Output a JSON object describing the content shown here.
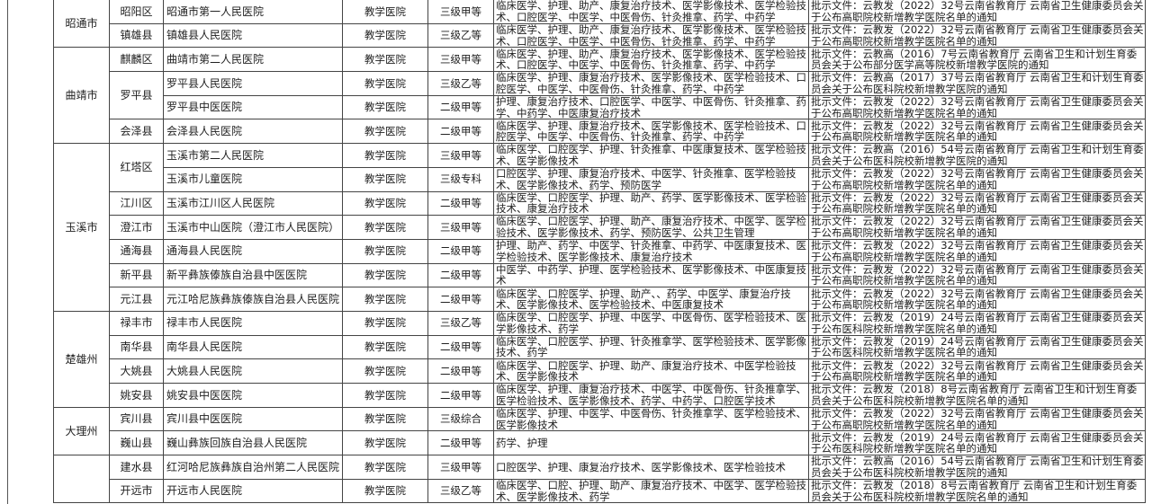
{
  "cities": [
    {
      "name": "昭通市",
      "counties": [
        {
          "name": "昭阳区",
          "hospitals": [
            {
              "name": "昭通市第一人民医院",
              "type": "教学医院",
              "level": "三级甲等",
              "majors": "临床医学、护理、助产、康复治疗技术、医学影像技术、医学检验技术、口腔医学、中医学、中医骨伤、针灸推拿、药学、中药学",
              "document": "批示文件：云教发（2022）32号云南省教育厅 云南省卫生健康委员会关于公布高职院校新增教学医院名单的通知"
            }
          ]
        },
        {
          "name": "镇雄县",
          "hospitals": [
            {
              "name": "镇雄县人民医院",
              "type": "教学医院",
              "level": "三级乙等",
              "majors": "临床医学、护理、助产、康复治疗技术、医学影像技术、医学检验技术、口腔医学、中医学、中医骨伤、针灸推拿、药学、中药学",
              "document": "批示文件：云教发（2022）32号云南省教育厅 云南省卫生健康委员会关于公布高职院校新增教学医院名单的通知"
            }
          ]
        }
      ]
    },
    {
      "name": "曲靖市",
      "counties": [
        {
          "name": "麒麟区",
          "hospitals": [
            {
              "name": "曲靖市第二人民医院",
              "type": "教学医院",
              "level": "三级甲等",
              "majors": "临床医学、护理、助产、康复治疗技术、医学影像技术、医学检验技术、口腔医学、中医学、中医骨伤、针灸推拿、药学、中药学",
              "document": "批示文件：云教高（2016）7号云南省教育厅 云南省卫生和计划生育委员会关于公布部分医学高等院校新增教学医院的通知"
            }
          ]
        },
        {
          "name": "罗平县",
          "hospitals": [
            {
              "name": "罗平县人民医院",
              "type": "教学医院",
              "level": "三级乙等",
              "majors": "临床医学、护理、康复治疗技术、医学影像技术、医学检验技术、口腔医学、中医学、中医骨伤、针灸推拿、药学、中药学",
              "document": "批示文件：云教高（2017）37号云南省教育厅 云南省卫生和计划生育委员会关于公布医科院校新增教学医院的通知"
            },
            {
              "name": "罗平县中医医院",
              "type": "教学医院",
              "level": "二级甲等",
              "majors": "护理、康复治疗技术、口腔医学、中医学、中医骨伤、针灸推拿、药学、中药学、中医康复治疗技术",
              "document": "批示文件：云教发（2022）32号云南省教育厅 云南省卫生健康委员会关于公布高职院校新增教学医院名单的通知"
            }
          ]
        },
        {
          "name": "会泽县",
          "hospitals": [
            {
              "name": "会泽县人民医院",
              "type": "教学医院",
              "level": "二级甲等",
              "majors": "临床医学、护理、康复治疗技术、医学影像技术、医学检验技术、口腔医学、中医学、中医骨伤、针灸推拿、药学、中药学",
              "document": "批示文件：云教发（2022）32号云南省教育厅 云南省卫生健康委员会关于公布高职院校新增教学医院名单的通知"
            }
          ]
        }
      ]
    },
    {
      "name": "玉溪市",
      "counties": [
        {
          "name": "红塔区",
          "hospitals": [
            {
              "name": "玉溪市第二人民医院",
              "type": "教学医院",
              "level": "三级甲等",
              "majors": "临床医学、口腔医学、护理、针灸推拿、中医康复技术、医学检验技术、医学影像技术",
              "document": "批示文件：云教高（2016）54号云南省教育厅 云南省卫生和计划生育委员会关于公布医科院校新增教学医院的通知"
            },
            {
              "name": "玉溪市儿童医院",
              "type": "教学医院",
              "level": "三级专科",
              "majors": "口腔医学、护理、康复治疗技术、中医学、针灸推拿、医学检验技术、医学影像技术、药学、预防医学",
              "document": "批示文件：云教发（2022）32号云南省教育厅 云南省卫生健康委员会关于公布高职院校新增教学医院名单的通知"
            }
          ]
        },
        {
          "name": "江川区",
          "hospitals": [
            {
              "name": "玉溪市江川区人民医院",
              "type": "教学医院",
              "level": "二级甲等",
              "majors": "临床医学、口腔医学、护理、助产、药学、医学影像技术、医学检验技术、康复治疗技术",
              "document": "批示文件：云教发（2022）32号云南省教育厅 云南省卫生健康委员会关于公布高职院校新增教学医院名单的通知"
            }
          ]
        },
        {
          "name": "澄江市",
          "hospitals": [
            {
              "name": "玉溪市中山医院（澄江市人民医院）",
              "type": "教学医院",
              "level": "三级甲等",
              "majors": "临床医学、口腔医学、护理、助产、康复治疗技术、中医学、医学检验技术、医学影像技术、药学、预防医学、公共卫生管理",
              "document": "批示文件：云教发（2022）32号云南省教育厅 云南省卫生健康委员会关于公布高职院校新增教学医院名单的通知"
            }
          ]
        },
        {
          "name": "通海县",
          "hospitals": [
            {
              "name": "通海县人民医院",
              "type": "教学医院",
              "level": "二级甲等",
              "majors": "护理、助产、药学、中医学、针灸推拿、中药学、中医康复技术、医学检验技术、医学影像技术、康复治疗技术",
              "document": "批示文件：云教发（2022）32号云南省教育厅 云南省卫生健康委员会关于公布高职院校新增教学医院名单的通知"
            }
          ]
        },
        {
          "name": "新平县",
          "hospitals": [
            {
              "name": "新平彝族傣族自治县中医医院",
              "type": "教学医院",
              "level": "二级甲等",
              "majors": "中医学、中药学、护理、医学检验技术、医学影像技术、中医康复技术",
              "document": "批示文件：云教发（2022）32号云南省教育厅 云南省卫生健康委员会关于公布高职院校新增教学医院名单的通知"
            }
          ]
        },
        {
          "name": "元江县",
          "hospitals": [
            {
              "name": "元江哈尼族彝族傣族自治县人民医院",
              "type": "教学医院",
              "level": "二级甲等",
              "majors": "临床医学、口腔医学、护理、助产、、药学、中医学、康复治疗技术、医学影像技术、医学检验技术、中医康复技术",
              "document": "批示文件：云教发（2022）32号云南省教育厅 云南省卫生健康委员会关于公布高职院校新增教学医院名单的通知"
            }
          ]
        }
      ]
    },
    {
      "name": "楚雄州",
      "counties": [
        {
          "name": "禄丰市",
          "hospitals": [
            {
              "name": "禄丰市人民医院",
              "type": "教学医院",
              "level": "三级乙等",
              "majors": "临床医学、口腔医学、护理、中医学、中医骨伤、医学检验技术、医学影像技术、药学",
              "document": "批示文件：云教发（2019）24号云南省教育厅 云南省卫生健康委员会关于公布医科院校新增教学医院名单的通知"
            }
          ]
        },
        {
          "name": "南华县",
          "hospitals": [
            {
              "name": "南华县人民医院",
              "type": "教学医院",
              "level": "二级甲等",
              "majors": "临床医学、口腔医学、护理、针灸推拿学、医学检验技术、医学影像技术、药学",
              "document": "批示文件：云教发（2019）24号云南省教育厅 云南省卫生健康委员会关于公布医科院校新增教学医院名单的通知"
            }
          ]
        },
        {
          "name": "大姚县",
          "hospitals": [
            {
              "name": "大姚县人民医院",
              "type": "教学医院",
              "level": "二级甲等",
              "majors": "临床医学、口腔医学、护理、助产、康复治疗技术、中医学检验技术、医学影像技术",
              "document": "批示文件：云教发（2022）32号云南省教育厅 云南省卫生健康委员会关于公布高职院校新增教学医院名单的通知"
            }
          ]
        },
        {
          "name": "姚安县",
          "hospitals": [
            {
              "name": "姚安县中医医院",
              "type": "教学医院",
              "level": "二级甲等",
              "majors": "临床医学、护理、康复治疗技术、中医学、中医骨伤、针灸推拿学、医学检验技术、医学影像技术、药学、中药学、口腔医学技术",
              "document": "批示文件：云教发（2018）8号云南省教育厅 云南省卫生和计划生育委员会关于公布医科院校新增教学医院名单的通知"
            }
          ]
        }
      ]
    },
    {
      "name": "大理州",
      "counties": [
        {
          "name": "宾川县",
          "hospitals": [
            {
              "name": "宾川县中医医院",
              "type": "教学医院",
              "level": "三级综合",
              "majors": "临床医学、护理、中医学、中医骨伤、针灸推拿学、医学检验技术、医学影像技术",
              "document": "批示文件：云教发（2022）32号云南省教育厅 云南省卫生健康委员会关于公布高职院校新增教学医院名单的通知"
            }
          ]
        },
        {
          "name": "巍山县",
          "hospitals": [
            {
              "name": "巍山彝族回族自治县人民医院",
              "type": "教学医院",
              "level": "二级甲等",
              "majors": "药学、护理",
              "document": "批示文件：云教发（2019）24号云南省教育厅 云南省卫生健康委员会关于公布医科院校新增教学医院名单的通知"
            }
          ]
        }
      ]
    },
    {
      "name": "",
      "counties": [
        {
          "name": "建水县",
          "hospitals": [
            {
              "name": "红河哈尼族彝族自治州第二人民医院",
              "type": "教学医院",
              "level": "三级甲等",
              "majors": "口腔医学、护理、康复治疗技术、医学影像技术、医学检验技术",
              "document": "批示文件：云教高（2016）54号云南省教育厅 云南省卫生和计划生育委员会关于公布医科院校新增教学医院的通知"
            }
          ]
        },
        {
          "name": "开远市",
          "hospitals": [
            {
              "name": "开远市人民医院",
              "type": "教学医院",
              "level": "三级乙等",
              "majors": "临床医学、口腔、护理、助产、康复治疗技术、中医学、医学检验技术、医学影像技术、药学",
              "document": "批示文件：云教发（2018）8号云南省教育厅 云南省卫生和计划生育委员会关于公布医科院校新增教学医院名单的通知"
            }
          ]
        }
      ]
    }
  ]
}
